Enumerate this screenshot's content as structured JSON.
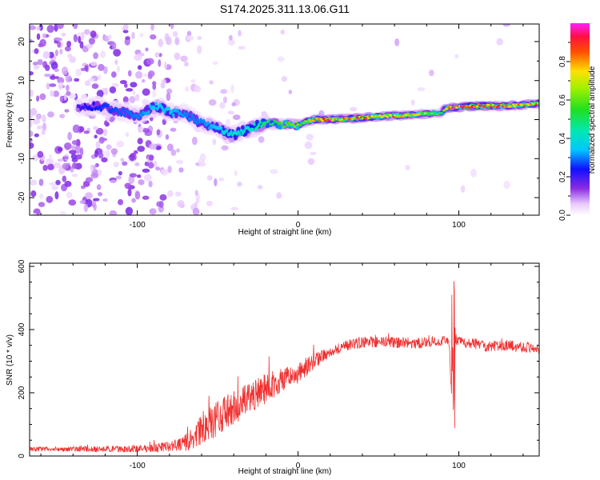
{
  "title": "S174.2025.311.13.06.G11",
  "chart_data": [
    {
      "type": "heatmap",
      "xlabel": "Height of straight line (km)",
      "ylabel": "Frequency (Hz)",
      "xlim": [
        -167,
        150
      ],
      "ylim": [
        -24.5,
        24.5
      ],
      "xticks": [
        -100,
        0,
        100
      ],
      "xtick_labels": [
        "-100",
        "0",
        "100"
      ],
      "yticks": [
        -20,
        -10,
        0,
        10,
        20
      ],
      "ytick_labels": [
        "-20",
        "-10",
        "0",
        "10",
        "20"
      ],
      "ridge": {
        "x": [
          -167,
          -125,
          -100,
          -88,
          -80,
          -70,
          -60,
          -50,
          -45,
          -40,
          -35,
          -30,
          -25,
          -20,
          -15,
          -10,
          -5,
          0,
          5,
          10,
          20,
          30,
          40,
          50,
          60,
          70,
          80,
          90,
          92,
          95,
          100,
          110,
          120,
          130,
          140,
          150
        ],
        "freq": [
          2,
          3.5,
          1,
          3.5,
          2,
          1.5,
          -1,
          -2,
          -3.5,
          -4,
          -3,
          -2.5,
          -1.5,
          -1,
          -1,
          -1.5,
          -1,
          -1.5,
          -0.5,
          0,
          0,
          0.2,
          0.5,
          0.8,
          1,
          1.2,
          1.5,
          1.8,
          3,
          3,
          3.2,
          3.5,
          3.5,
          3.5,
          3.8,
          4
        ],
        "amplitude": [
          0.05,
          0.25,
          0.3,
          0.35,
          0.35,
          0.3,
          0.3,
          0.35,
          0.4,
          0.4,
          0.4,
          0.4,
          0.45,
          0.5,
          0.5,
          0.6,
          0.6,
          0.65,
          0.7,
          0.85,
          0.9,
          0.8,
          0.9,
          0.75,
          0.85,
          0.75,
          0.7,
          0.5,
          0.8,
          0.95,
          0.9,
          0.95,
          0.9,
          0.85,
          0.8,
          0.85
        ]
      },
      "colorbar": {
        "label": "Normalized spectral amplitude",
        "range": [
          0,
          1
        ],
        "ticks": [
          0.0,
          0.2,
          0.4,
          0.6,
          0.8
        ],
        "tick_labels": [
          "0.0",
          "0.2",
          "0.4",
          "0.6",
          "0.8"
        ]
      }
    },
    {
      "type": "line",
      "xlabel": "Height of straight line (km)",
      "ylabel": "SNR (10 * v/v)",
      "xlim": [
        -167,
        150
      ],
      "ylim": [
        0,
        610
      ],
      "xticks": [
        -100,
        0,
        100
      ],
      "xtick_labels": [
        "-100",
        "0",
        "100"
      ],
      "yticks": [
        0,
        200,
        400,
        600
      ],
      "ytick_labels": [
        "0",
        "200",
        "400",
        "600"
      ],
      "color": "#f03030",
      "series": [
        {
          "name": "SNR",
          "x": [
            -167,
            -140,
            -120,
            -100,
            -90,
            -80,
            -70,
            -65,
            -60,
            -55,
            -50,
            -45,
            -40,
            -35,
            -30,
            -25,
            -20,
            -15,
            -10,
            -5,
            0,
            5,
            10,
            15,
            20,
            25,
            30,
            40,
            50,
            60,
            70,
            80,
            90,
            94,
            96,
            97,
            98,
            100,
            110,
            120,
            130,
            140,
            150
          ],
          "values": [
            22,
            22,
            22,
            22,
            25,
            30,
            40,
            60,
            80,
            100,
            120,
            135,
            150,
            165,
            180,
            200,
            215,
            230,
            240,
            250,
            260,
            280,
            300,
            315,
            330,
            340,
            350,
            360,
            360,
            360,
            355,
            360,
            365,
            360,
            120,
            360,
            370,
            360,
            355,
            345,
            350,
            345,
            340
          ],
          "noise": [
            10,
            12,
            14,
            15,
            18,
            25,
            40,
            60,
            70,
            75,
            80,
            80,
            80,
            80,
            70,
            65,
            70,
            65,
            55,
            50,
            45,
            40,
            35,
            30,
            25,
            25,
            25,
            25,
            25,
            25,
            25,
            25,
            25,
            25,
            40,
            25,
            25,
            25,
            25,
            25,
            25,
            25,
            25
          ]
        }
      ]
    }
  ]
}
